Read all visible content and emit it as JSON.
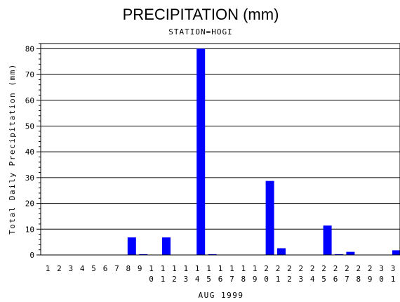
{
  "chart_data": {
    "type": "bar",
    "title": "PRECIPITATION (mm)",
    "subtitle": "STATION=HOGI",
    "xlabel": "AUG 1999",
    "ylabel": "Total Daily Precipitation (mm)",
    "ylim": [
      0,
      82
    ],
    "yticks": [
      0,
      10,
      20,
      30,
      40,
      50,
      60,
      70,
      80
    ],
    "grid": true,
    "bar_color": "#0000ff",
    "categories": [
      "1",
      "2",
      "3",
      "4",
      "5",
      "6",
      "7",
      "8",
      "9",
      "10",
      "11",
      "12",
      "13",
      "14",
      "15",
      "16",
      "17",
      "18",
      "19",
      "20",
      "21",
      "22",
      "23",
      "24",
      "25",
      "26",
      "27",
      "28",
      "29",
      "30",
      "31"
    ],
    "values": [
      0,
      0,
      0,
      0,
      0,
      0,
      0,
      6.8,
      0.3,
      0,
      6.8,
      0,
      0,
      80,
      0.3,
      0,
      0,
      0,
      0,
      28.7,
      2.6,
      0,
      0,
      0,
      11.4,
      0.3,
      1.2,
      0,
      0,
      0,
      1.8
    ]
  }
}
